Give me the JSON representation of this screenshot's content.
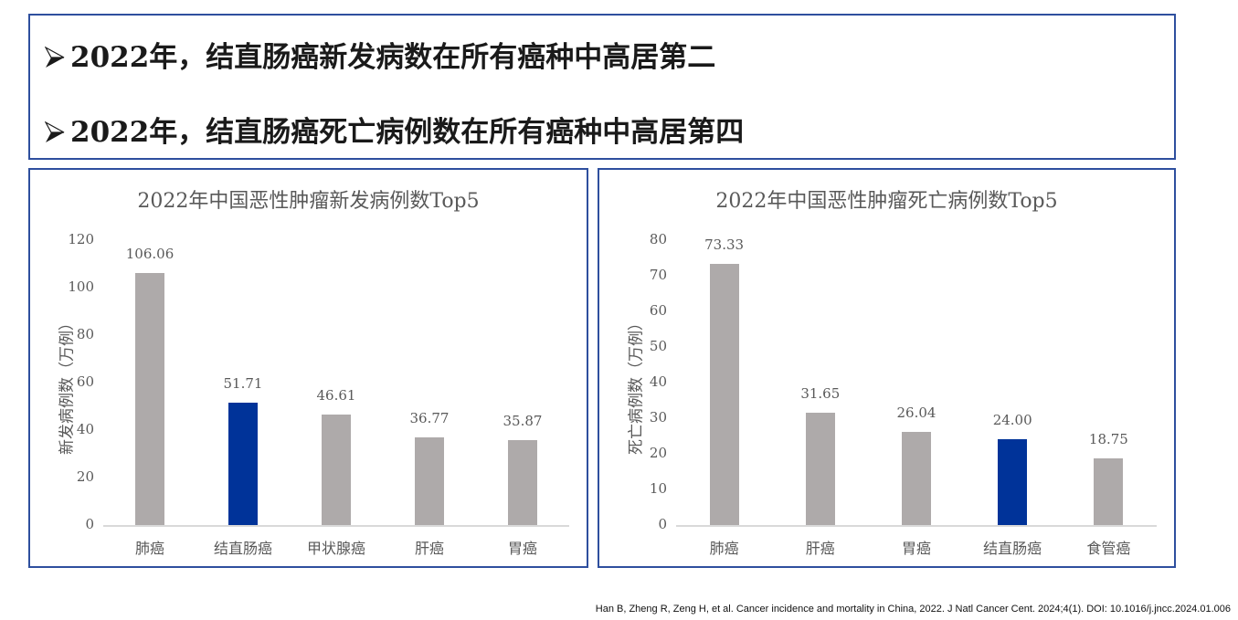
{
  "headlines": [
    {
      "arrow_icon": "arrow-bullet-icon",
      "text": "2022年，结直肠癌新发病数在所有癌种中高居第二"
    },
    {
      "arrow_icon": "arrow-bullet-icon",
      "text": "2022年，结直肠癌死亡病例数在所有癌种中高居第四"
    }
  ],
  "colors": {
    "border": "#2E4F9E",
    "bar_default": "#AEAAAA",
    "bar_highlight": "#003399",
    "text_gray": "#595959"
  },
  "chart_data": [
    {
      "type": "bar",
      "title": "2022年中国恶性肿瘤新发病例数Top5",
      "xlabel": "",
      "ylabel": "新发病例数（万例）",
      "categories": [
        "肺癌",
        "结直肠癌",
        "甲状腺癌",
        "肝癌",
        "胃癌"
      ],
      "values": [
        106.06,
        51.71,
        46.61,
        36.77,
        35.87
      ],
      "value_labels": [
        "106.06",
        "51.71",
        "46.61",
        "36.77",
        "35.87"
      ],
      "highlight_index": 1,
      "ylim": [
        0,
        120
      ],
      "yticks": [
        "0",
        "20",
        "40",
        "60",
        "80",
        "100",
        "120"
      ],
      "grid": false,
      "legend": "none"
    },
    {
      "type": "bar",
      "title": "2022年中国恶性肿瘤死亡病例数Top5",
      "xlabel": "",
      "ylabel": "死亡病例数（万例）",
      "categories": [
        "肺癌",
        "肝癌",
        "胃癌",
        "结直肠癌",
        "食管癌"
      ],
      "values": [
        73.33,
        31.65,
        26.04,
        24.0,
        18.75
      ],
      "value_labels": [
        "73.33",
        "31.65",
        "26.04",
        "24.00",
        "18.75"
      ],
      "highlight_index": 3,
      "ylim": [
        0,
        80
      ],
      "yticks": [
        "0",
        "10",
        "20",
        "30",
        "40",
        "50",
        "60",
        "70",
        "80"
      ],
      "grid": false,
      "legend": "none"
    }
  ],
  "citation": "Han B, Zheng R, Zeng H, et al. Cancer incidence and mortality in China, 2022. J Natl Cancer Cent. 2024;4(1). DOI: 10.1016/j.jncc.2024.01.006"
}
